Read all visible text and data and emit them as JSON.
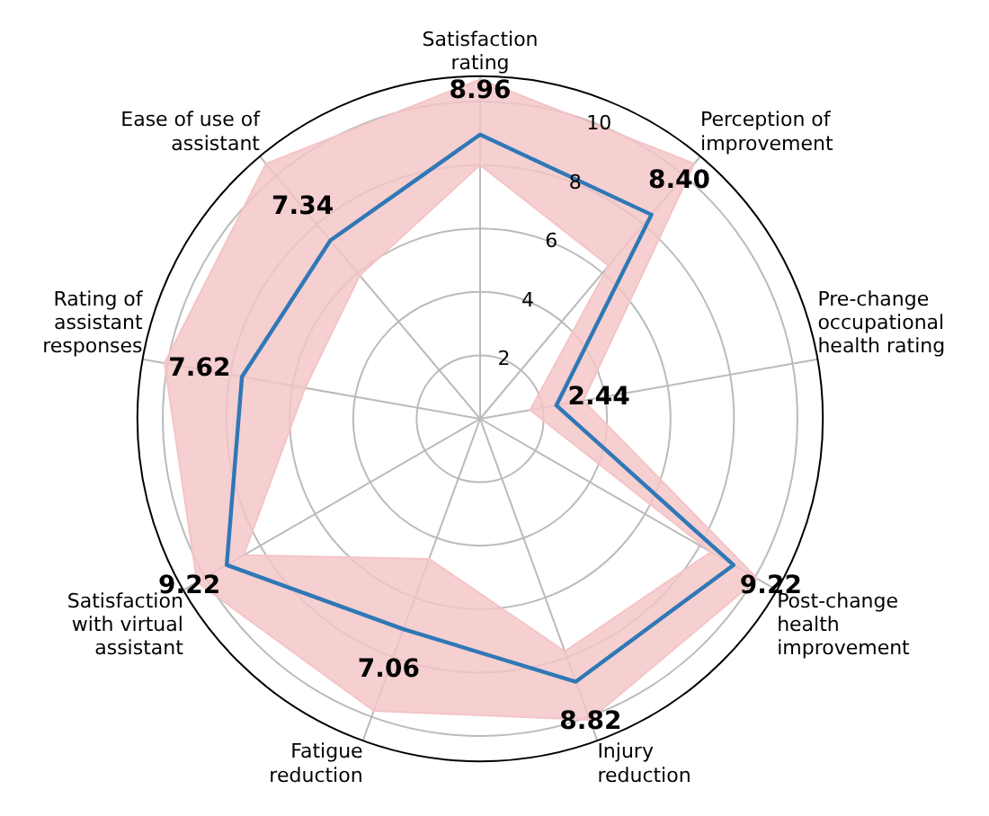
{
  "chart_data": {
    "type": "radar",
    "categories": [
      "Satisfaction\nrating",
      "Perception of\nimprovement",
      "Pre-change\noccupational\nhealth rating",
      "Post-change\nhealth\nimprovement",
      "Injury\nreduction",
      "Fatigue\nreduction",
      "Satisfaction\nwith virtual\nassistant",
      "Rating of\nassistant\nresponses",
      "Ease of use of\nassistant"
    ],
    "series": [
      {
        "color": "#f4c4c6",
        "values": [
          10.7,
          10.5,
          3.3,
          10.1,
          10.1,
          9.8,
          10.3,
          10.1,
          10.5
        ]
      },
      {
        "color": "#f4c4c6",
        "values": [
          8.0,
          6.3,
          1.6,
          8.4,
          7.8,
          4.7,
          8.6,
          5.6,
          5.9
        ]
      },
      {
        "color": "#2f78b6",
        "values": [
          8.96,
          8.4,
          2.44,
          9.22,
          8.82,
          7.06,
          9.22,
          7.62,
          7.34
        ],
        "value_labels": [
          "8.96",
          "8.40",
          "2.44",
          "9.22",
          "8.82",
          "7.06",
          "9.22",
          "7.62",
          "7.34"
        ]
      }
    ],
    "ylim": [
      0,
      10.8
    ],
    "yticks": [
      2,
      4,
      6,
      8,
      10
    ],
    "grid": true,
    "marker": "none",
    "line_style": "solid",
    "legend": false
  }
}
